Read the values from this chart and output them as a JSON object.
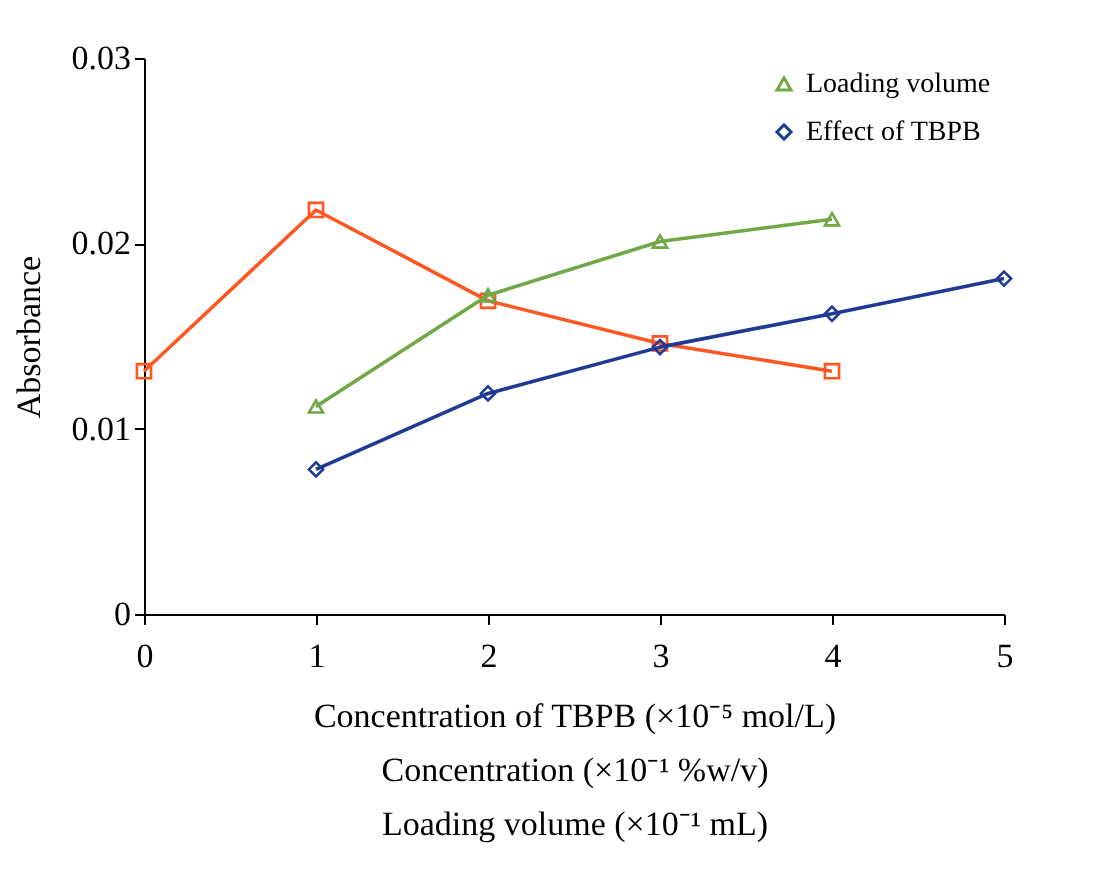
{
  "chart_data": {
    "type": "line",
    "ylabel": "Absorbance",
    "xlabel": "Concentration of TBPB (×10⁻⁵ mol/L)",
    "annotations": [
      "Concentration (×10⁻¹ %w/v)",
      "Loading volume (×10⁻¹ mL)"
    ],
    "xlim": [
      0,
      5
    ],
    "xticks": [
      0,
      1,
      2,
      3,
      4,
      5
    ],
    "ylim": [
      0,
      0.03
    ],
    "yticks": [
      0,
      0.01,
      0.02,
      0.03
    ],
    "grid": false,
    "legend": "top right",
    "series": [
      {
        "color": "#ff5722",
        "marker": "square",
        "x": [
          0,
          1,
          2,
          3,
          4
        ],
        "values": [
          0.0131,
          0.0218,
          0.0169,
          0.0146,
          0.0131
        ]
      },
      {
        "name": "Loading volume",
        "color": "#70a845",
        "marker": "triangle",
        "x": [
          1,
          2,
          3,
          4
        ],
        "values": [
          0.0112,
          0.0172,
          0.0201,
          0.0213
        ]
      },
      {
        "name": "Effect of TBPB",
        "color": "#1f3a93",
        "marker": "diamond",
        "x": [
          1,
          2,
          3,
          4,
          5
        ],
        "values": [
          0.0078,
          0.0119,
          0.0144,
          0.0162,
          0.0181
        ]
      }
    ]
  }
}
